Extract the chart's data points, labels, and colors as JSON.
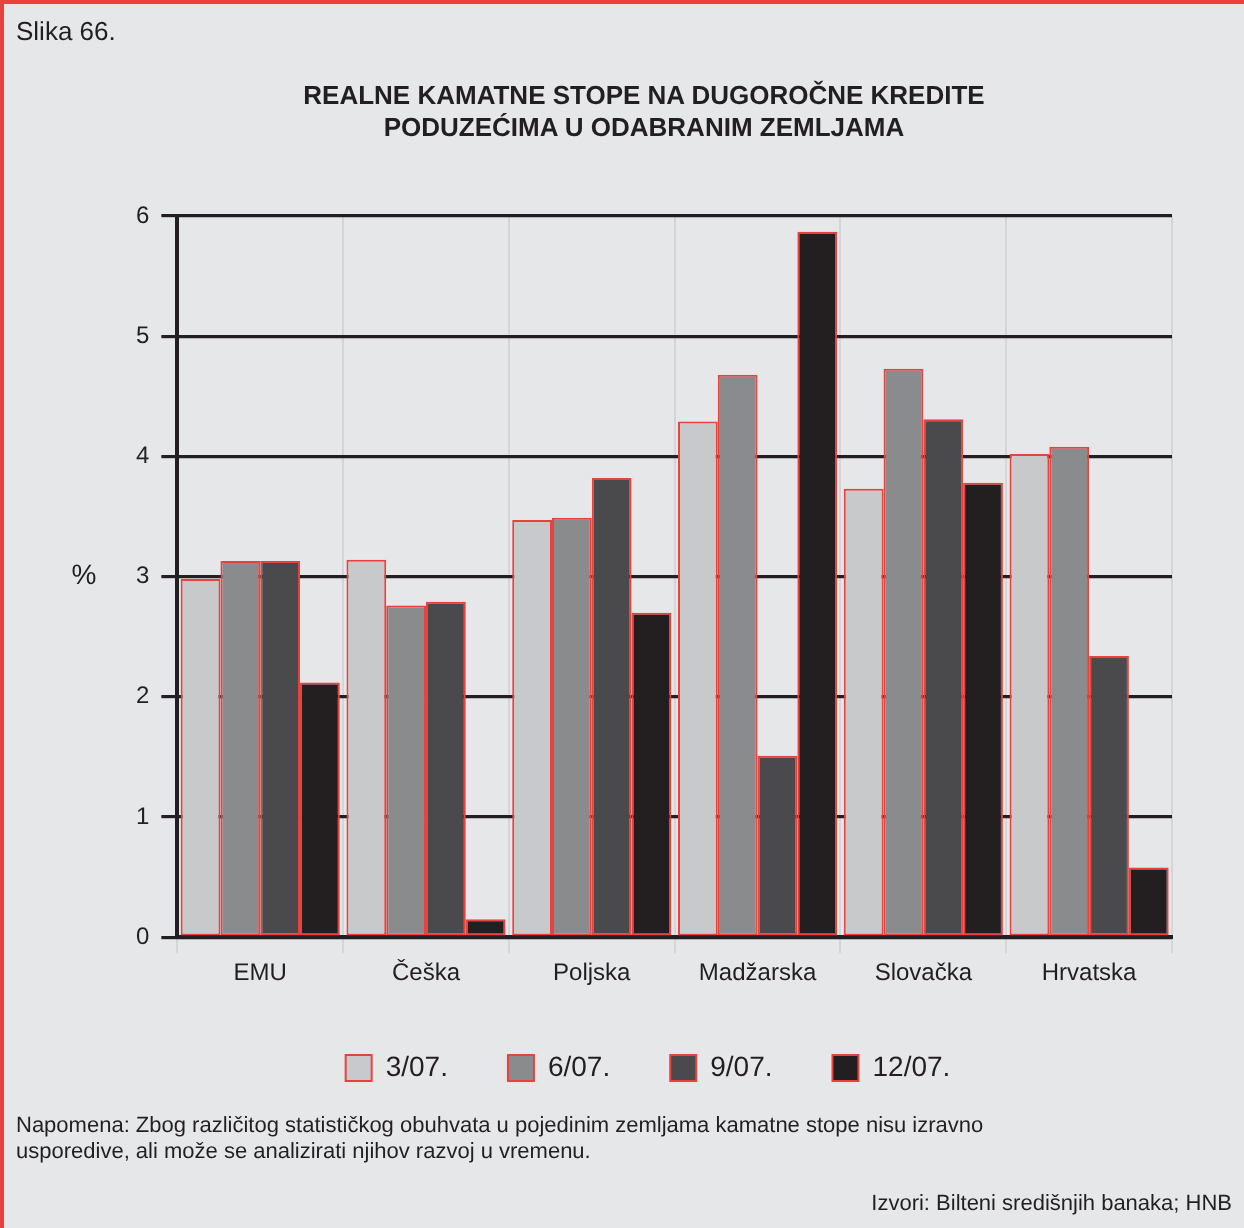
{
  "chart_data": {
    "type": "bar",
    "title": "REALNE KAMATNE STOPE NA DUGOROČNE KREDITE PODUZEĆIMA U ODABRANIM ZEMLJAMA",
    "ylabel": "%",
    "categories": [
      "EMU",
      "Češka",
      "Poljska",
      "Madžarska",
      "Slovačka",
      "Hrvatska"
    ],
    "series": [
      {
        "name": "3/07.",
        "color": "#c8c9cb",
        "values": [
          2.98,
          3.14,
          3.47,
          4.29,
          3.73,
          4.02
        ]
      },
      {
        "name": "6/07.",
        "color": "#8a8b8d",
        "values": [
          3.13,
          2.76,
          3.49,
          4.68,
          4.73,
          4.08
        ]
      },
      {
        "name": "9/07.",
        "color": "#4a4a4c",
        "values": [
          3.13,
          2.79,
          3.82,
          1.51,
          4.31,
          2.34
        ]
      },
      {
        "name": "12/07.",
        "color": "#231f20",
        "values": [
          2.12,
          0.15,
          2.7,
          5.87,
          3.78,
          0.58
        ]
      }
    ],
    "ylim": [
      0,
      6
    ],
    "yticks": [
      0,
      1,
      2,
      3,
      4,
      5,
      6
    ],
    "grid": true,
    "legend": "bottom",
    "annotations": [
      "Slika 66.",
      "Napomena: Zbog različitog statističkog obuhvata u pojedinim zemljama kamatne stope nisu izravno usporedive, ali može se analizirati njihov razvoj u vremenu.",
      "Izvori: Bilteni središnjih banaka; HNB"
    ]
  }
}
